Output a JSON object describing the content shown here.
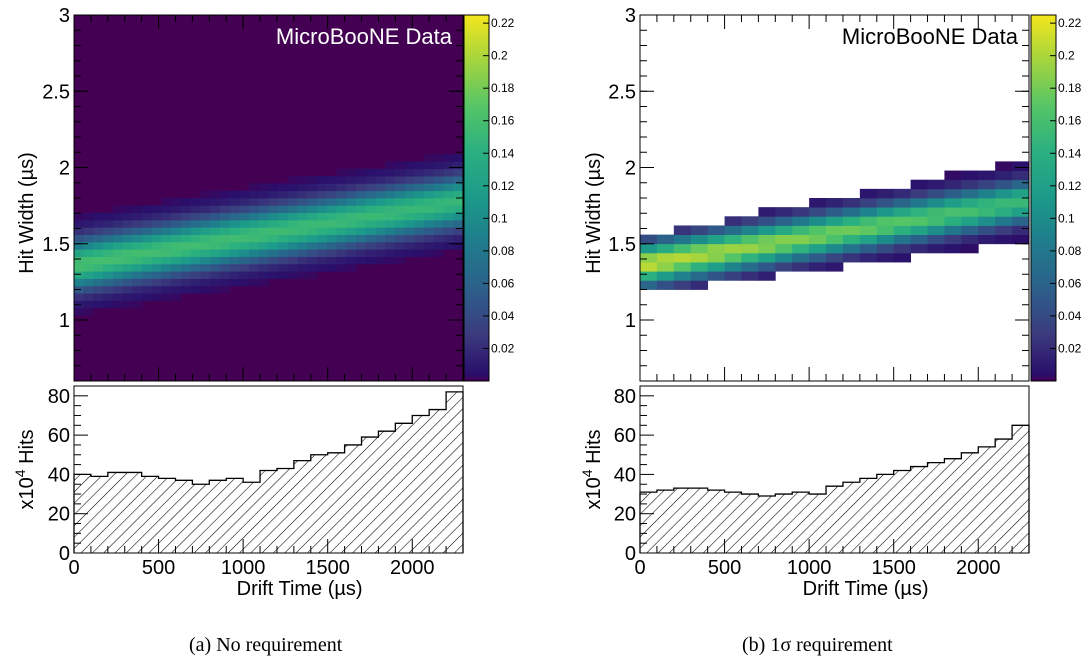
{
  "chart_data": [
    {
      "type": "heatmap",
      "panel": "a",
      "caption": "(a) No requirement",
      "annotation": "MicroBooNE Data",
      "heatmap": {
        "ylabel": "Hit Width (µs)",
        "xlim": [
          0,
          2300
        ],
        "ylim": [
          0.6,
          3.0
        ],
        "yticks": [
          1,
          1.5,
          2,
          2.5,
          3
        ],
        "ytick_labels": [
          "1",
          "1.5",
          "2",
          "2.5",
          "3"
        ],
        "x_bins": 40,
        "y_bins": 50,
        "ridge": {
          "x": [
            0,
            2300
          ],
          "center": [
            1.36,
            1.78
          ]
        },
        "width_sigma": [
          0.11,
          0.11
        ],
        "peak_value": [
          0.16,
          0.15
        ],
        "colorbar": {
          "ticks": [
            0.02,
            0.04,
            0.06,
            0.08,
            0.1,
            0.12,
            0.14,
            0.16,
            0.18,
            0.2,
            0.22
          ],
          "labels": [
            "0.02",
            "0.04",
            "0.06",
            "0.08",
            "0.1",
            "0.12",
            "0.14",
            "0.16",
            "0.18",
            "0.2",
            "0.22"
          ],
          "range": [
            0,
            0.225
          ]
        }
      },
      "histogram": {
        "type": "bar",
        "xlabel": "Drift Time (µs)",
        "ylabel_prefix": "x10",
        "ylabel_exp": "4",
        "ylabel_suffix": " Hits",
        "xlim": [
          0,
          2300
        ],
        "ylim": [
          0,
          85
        ],
        "xticks": [
          0,
          500,
          1000,
          1500,
          2000
        ],
        "xtick_labels": [
          "0",
          "500",
          "1000",
          "1500",
          "2000"
        ],
        "yticks": [
          0,
          20,
          40,
          60,
          80
        ],
        "ytick_labels": [
          "0",
          "20",
          "40",
          "60",
          "80"
        ],
        "bin_edges": [
          0,
          100,
          200,
          300,
          400,
          500,
          600,
          700,
          800,
          900,
          1000,
          1100,
          1200,
          1300,
          1400,
          1500,
          1600,
          1700,
          1800,
          1900,
          2000,
          2100,
          2200,
          2300
        ],
        "values": [
          40,
          39,
          41,
          41,
          39,
          38,
          37,
          35,
          37,
          38,
          36,
          42,
          43,
          47,
          50,
          51,
          55,
          59,
          62,
          66,
          70,
          73,
          82
        ]
      }
    },
    {
      "type": "heatmap",
      "panel": "b",
      "caption": "(b) 1σ requirement",
      "annotation": "MicroBooNE Data",
      "heatmap": {
        "ylabel": "Hit Width (µs)",
        "xlim": [
          0,
          2300
        ],
        "ylim": [
          0.6,
          3.0
        ],
        "yticks": [
          1,
          1.5,
          2,
          2.5,
          3
        ],
        "ytick_labels": [
          "1",
          "1.5",
          "2",
          "2.5",
          "3"
        ],
        "x_bins": 23,
        "y_bins": 40,
        "ridge": {
          "x": [
            0,
            2300
          ],
          "center": [
            1.36,
            1.78
          ]
        },
        "width_sigma": [
          0.09,
          0.09
        ],
        "band_halfwidth": [
          0.19,
          0.27
        ],
        "peak_value": [
          0.21,
          0.15
        ],
        "colorbar": {
          "ticks": [
            0.02,
            0.04,
            0.06,
            0.08,
            0.1,
            0.12,
            0.14,
            0.16,
            0.18,
            0.2,
            0.22
          ],
          "labels": [
            "0.02",
            "0.04",
            "0.06",
            "0.08",
            "0.1",
            "0.12",
            "0.14",
            "0.16",
            "0.18",
            "0.2",
            "0.22"
          ],
          "range": [
            0,
            0.225
          ]
        }
      },
      "histogram": {
        "type": "bar",
        "xlabel": "Drift Time (µs)",
        "ylabel_prefix": "x10",
        "ylabel_exp": "4",
        "ylabel_suffix": " Hits",
        "xlim": [
          0,
          2300
        ],
        "ylim": [
          0,
          85
        ],
        "xticks": [
          0,
          500,
          1000,
          1500,
          2000
        ],
        "xtick_labels": [
          "0",
          "500",
          "1000",
          "1500",
          "2000"
        ],
        "yticks": [
          0,
          20,
          40,
          60,
          80
        ],
        "ytick_labels": [
          "0",
          "20",
          "40",
          "60",
          "80"
        ],
        "bin_edges": [
          0,
          100,
          200,
          300,
          400,
          500,
          600,
          700,
          800,
          900,
          1000,
          1100,
          1200,
          1300,
          1400,
          1500,
          1600,
          1700,
          1800,
          1900,
          2000,
          2100,
          2200,
          2300
        ],
        "values": [
          31,
          32,
          33,
          33,
          32,
          31,
          30,
          29,
          30,
          31,
          30,
          34,
          36,
          38,
          40,
          42,
          44,
          46,
          48,
          51,
          54,
          58,
          65
        ]
      }
    }
  ]
}
